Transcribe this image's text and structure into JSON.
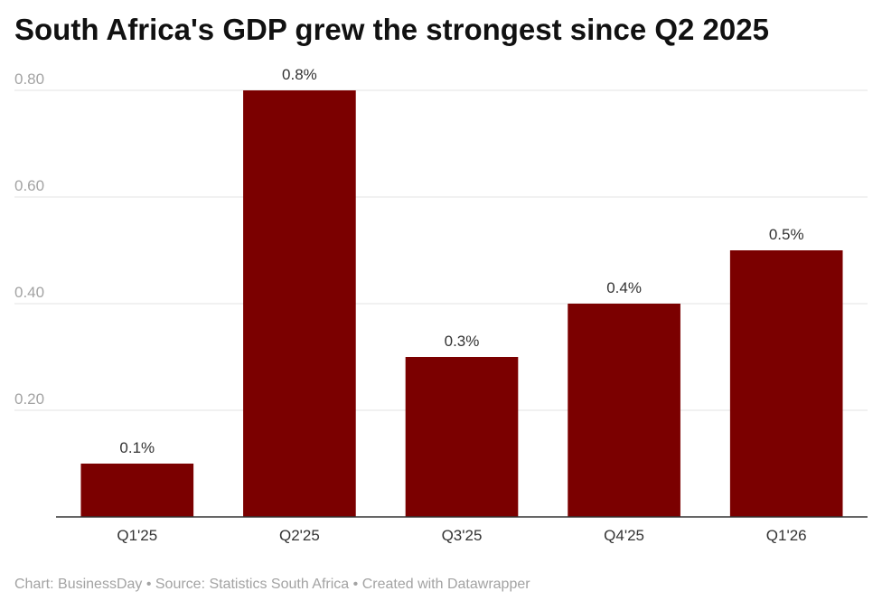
{
  "chart_data": {
    "type": "bar",
    "title": "South Africa's GDP grew the strongest since Q2 2025",
    "categories": [
      "Q1'25",
      "Q2'25",
      "Q3'25",
      "Q4'25",
      "Q1'26"
    ],
    "values": [
      0.1,
      0.8,
      0.3,
      0.4,
      0.5
    ],
    "data_labels": [
      "0.1%",
      "0.8%",
      "0.3%",
      "0.4%",
      "0.5%"
    ],
    "yticks": [
      0.2,
      0.4,
      0.6,
      0.8
    ],
    "ytick_labels": [
      "0.20",
      "0.40",
      "0.60",
      "0.80"
    ],
    "ylim": [
      0,
      0.8
    ],
    "xlabel": "",
    "ylabel": "",
    "grid": true,
    "bar_color": "#7b0000"
  },
  "footer": {
    "text": "Chart: BusinessDay • Source: Statistics South Africa • Created with Datawrapper"
  }
}
